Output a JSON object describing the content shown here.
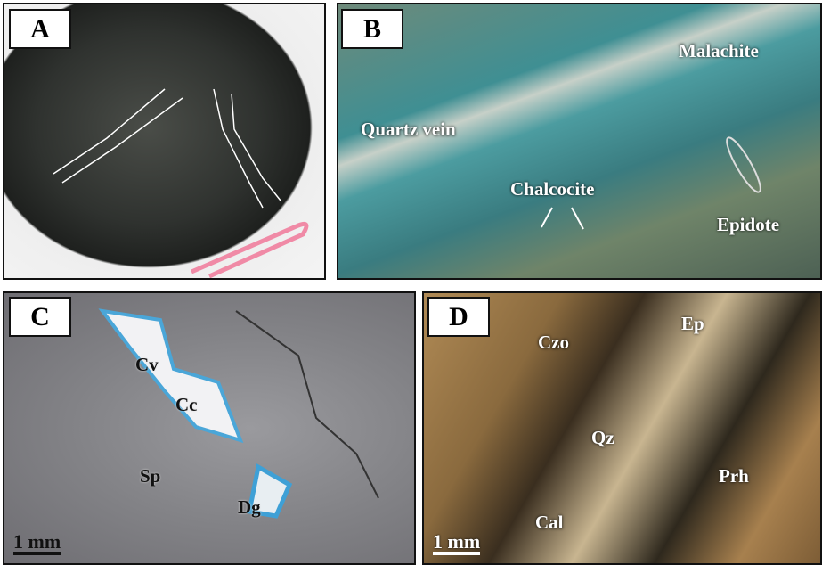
{
  "panels": [
    {
      "label": "A",
      "annotations": []
    },
    {
      "label": "B",
      "annotations": [
        "Malachite",
        "Quartz vein",
        "Chalcocite",
        "Epidote"
      ]
    },
    {
      "label": "C",
      "annotations": [
        "Cv",
        "Cc",
        "Sp",
        "Dg"
      ],
      "scale_bar": "1 mm"
    },
    {
      "label": "D",
      "annotations": [
        "Czo",
        "Ep",
        "Qz",
        "Prh",
        "Cal"
      ],
      "scale_bar": "1 mm"
    }
  ]
}
